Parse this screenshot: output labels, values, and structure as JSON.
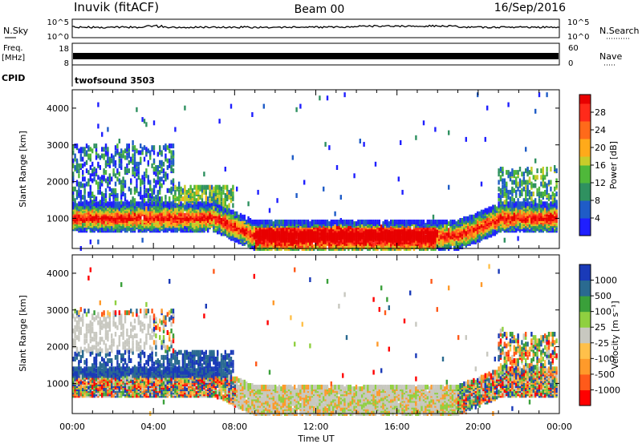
{
  "header": {
    "station": "Inuvik (fitACF)",
    "beam": "Beam 00",
    "date": "16/Sep/2016"
  },
  "strips": {
    "nsky_label": "N.Sky",
    "nsky_ticks": [
      "10^5",
      "10^0"
    ],
    "nsearch_label": "N.Search",
    "nsearch_ticks": [
      "10^5",
      "10^0"
    ],
    "freq_label_1": "Freq.",
    "freq_label_2": "[MHz]",
    "freq_ticks": [
      "18",
      "8"
    ],
    "nave_label": "Nave",
    "nave_ticks": [
      "60",
      "0"
    ],
    "cpid_label": "CPID",
    "cpid_value": "twofsound 3503"
  },
  "colors": {
    "power_scale": [
      "#1f1fff",
      "#1f5cc7",
      "#2f9160",
      "#4fb83a",
      "#c8cc2a",
      "#ffaa1a",
      "#ff6a1a",
      "#ff2a1a",
      "#e80000"
    ],
    "velocity_scale": [
      "#ff0000",
      "#ff5a1a",
      "#ff9a2a",
      "#ffc04a",
      "#c8c8c0",
      "#8fd040",
      "#3aa03a",
      "#2a6a90",
      "#1a3ab8"
    ]
  },
  "chart_data": [
    {
      "type": "heatmap",
      "name": "power",
      "ylabel": "Slant Range [km]",
      "xlabel": "Time UT",
      "x_ticks": [
        "00:00",
        "04:00",
        "08:00",
        "12:00",
        "16:00",
        "20:00",
        "00:00"
      ],
      "x_range_hours": [
        0,
        24
      ],
      "y_ticks": [
        1000,
        2000,
        3000,
        4000
      ],
      "ylim": [
        180,
        4500
      ],
      "colorbar": {
        "label": "Power [dB]",
        "ticks": [
          4,
          8,
          12,
          16,
          20,
          24,
          28
        ],
        "range": [
          0,
          32
        ]
      }
    },
    {
      "type": "heatmap",
      "name": "velocity",
      "ylabel": "Slant Range [km]",
      "xlabel": "Time UT",
      "x_ticks": [
        "00:00",
        "04:00",
        "08:00",
        "12:00",
        "16:00",
        "20:00",
        "00:00"
      ],
      "x_range_hours": [
        0,
        24
      ],
      "y_ticks": [
        1000,
        2000,
        3000,
        4000
      ],
      "ylim": [
        180,
        4500
      ],
      "colorbar": {
        "label": "Velocity [m s⁻¹]",
        "ticks": [
          1000,
          500,
          100,
          25,
          -25,
          -100,
          -500,
          -1000
        ]
      }
    }
  ],
  "xaxis": {
    "label": "Time UT",
    "ticks": [
      "00:00",
      "04:00",
      "08:00",
      "12:00",
      "16:00",
      "20:00",
      "00:00"
    ]
  }
}
